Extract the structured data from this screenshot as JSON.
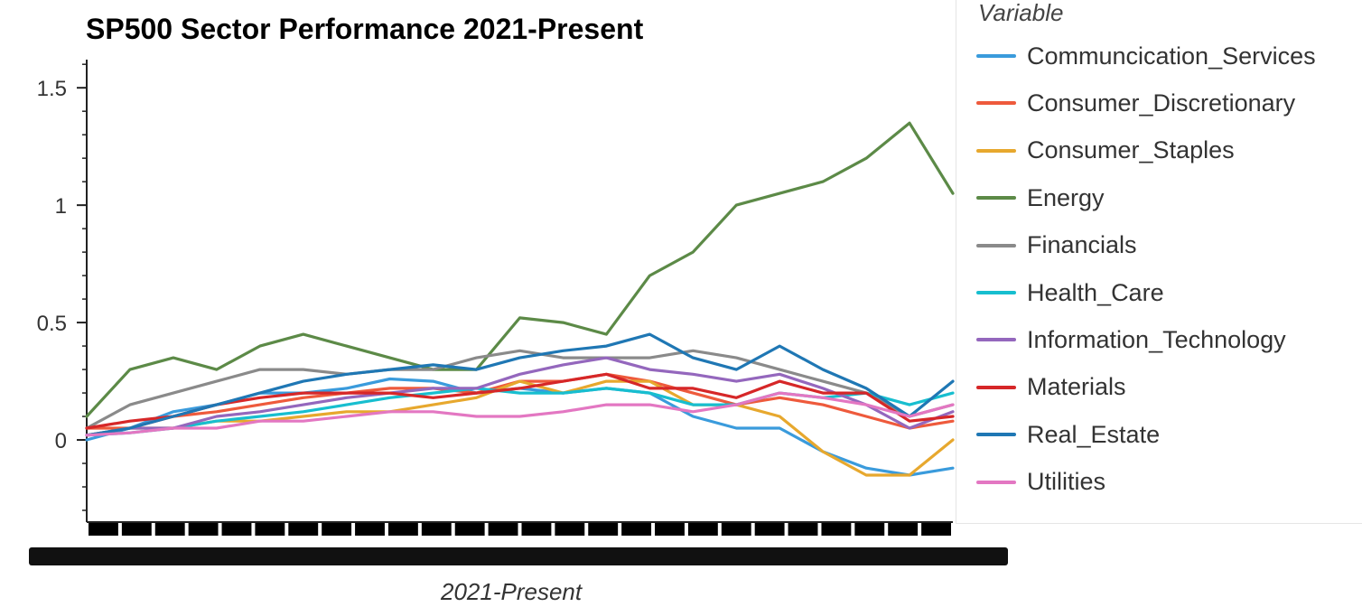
{
  "chart_data": {
    "type": "line",
    "title": "SP500 Sector Performance 2021-Present",
    "xlabel": "2021-Present",
    "ylabel": "",
    "ylim": [
      -0.35,
      1.62
    ],
    "yticks": [
      0,
      0.5,
      1,
      1.5
    ],
    "ytick_labels": [
      "0",
      "0.5",
      "1",
      "1.5"
    ],
    "legend_title": "Variable",
    "legend_position": "right",
    "grid": false,
    "x_tick_labels_overlapping": true,
    "x": [
      0,
      0.05,
      0.1,
      0.15,
      0.2,
      0.25,
      0.3,
      0.35,
      0.4,
      0.45,
      0.5,
      0.55,
      0.6,
      0.65,
      0.7,
      0.75,
      0.8,
      0.85,
      0.9,
      0.95,
      1.0
    ],
    "series": [
      {
        "name": "Communcication_Services",
        "color": "#3a9bdc",
        "values": [
          0.0,
          0.05,
          0.12,
          0.15,
          0.2,
          0.2,
          0.22,
          0.26,
          0.25,
          0.2,
          0.22,
          0.2,
          0.22,
          0.2,
          0.1,
          0.05,
          0.05,
          -0.05,
          -0.12,
          -0.15,
          -0.12
        ]
      },
      {
        "name": "Consumer_Discretionary",
        "color": "#ee5a3c",
        "values": [
          0.05,
          0.05,
          0.1,
          0.12,
          0.15,
          0.18,
          0.2,
          0.22,
          0.22,
          0.2,
          0.25,
          0.25,
          0.28,
          0.25,
          0.2,
          0.15,
          0.18,
          0.15,
          0.1,
          0.05,
          0.08
        ]
      },
      {
        "name": "Consumer_Staples",
        "color": "#e7a82e",
        "values": [
          0.02,
          0.05,
          0.05,
          0.08,
          0.08,
          0.1,
          0.12,
          0.12,
          0.15,
          0.18,
          0.25,
          0.2,
          0.25,
          0.25,
          0.15,
          0.15,
          0.1,
          -0.05,
          -0.15,
          -0.15,
          0.0
        ]
      },
      {
        "name": "Energy",
        "color": "#5c8a47",
        "values": [
          0.1,
          0.3,
          0.35,
          0.3,
          0.4,
          0.45,
          0.4,
          0.35,
          0.3,
          0.3,
          0.52,
          0.5,
          0.45,
          0.7,
          0.8,
          1.0,
          1.05,
          1.1,
          1.2,
          1.35,
          1.05
        ]
      },
      {
        "name": "Financials",
        "color": "#8a8a8a",
        "values": [
          0.05,
          0.15,
          0.2,
          0.25,
          0.3,
          0.3,
          0.28,
          0.3,
          0.3,
          0.35,
          0.38,
          0.35,
          0.35,
          0.35,
          0.38,
          0.35,
          0.3,
          0.25,
          0.2,
          0.1,
          0.15
        ]
      },
      {
        "name": "Health_Care",
        "color": "#17becf",
        "values": [
          0.02,
          0.03,
          0.05,
          0.08,
          0.1,
          0.12,
          0.15,
          0.18,
          0.2,
          0.22,
          0.2,
          0.2,
          0.22,
          0.2,
          0.15,
          0.15,
          0.2,
          0.18,
          0.2,
          0.15,
          0.2
        ]
      },
      {
        "name": "Information_Technology",
        "color": "#9467bd",
        "values": [
          0.02,
          0.05,
          0.05,
          0.1,
          0.12,
          0.15,
          0.18,
          0.2,
          0.22,
          0.22,
          0.28,
          0.32,
          0.35,
          0.3,
          0.28,
          0.25,
          0.28,
          0.22,
          0.15,
          0.05,
          0.12
        ]
      },
      {
        "name": "Materials",
        "color": "#d62728",
        "values": [
          0.05,
          0.08,
          0.1,
          0.15,
          0.18,
          0.2,
          0.2,
          0.2,
          0.18,
          0.2,
          0.22,
          0.25,
          0.28,
          0.22,
          0.22,
          0.18,
          0.25,
          0.2,
          0.2,
          0.08,
          0.1
        ]
      },
      {
        "name": "Real_Estate",
        "color": "#1f77b4",
        "values": [
          0.02,
          0.05,
          0.1,
          0.15,
          0.2,
          0.25,
          0.28,
          0.3,
          0.32,
          0.3,
          0.35,
          0.38,
          0.4,
          0.45,
          0.35,
          0.3,
          0.4,
          0.3,
          0.22,
          0.1,
          0.25
        ]
      },
      {
        "name": "Utilities",
        "color": "#e377c2",
        "values": [
          0.02,
          0.03,
          0.05,
          0.05,
          0.08,
          0.08,
          0.1,
          0.12,
          0.12,
          0.1,
          0.1,
          0.12,
          0.15,
          0.15,
          0.12,
          0.15,
          0.2,
          0.18,
          0.15,
          0.1,
          0.15
        ]
      }
    ]
  }
}
